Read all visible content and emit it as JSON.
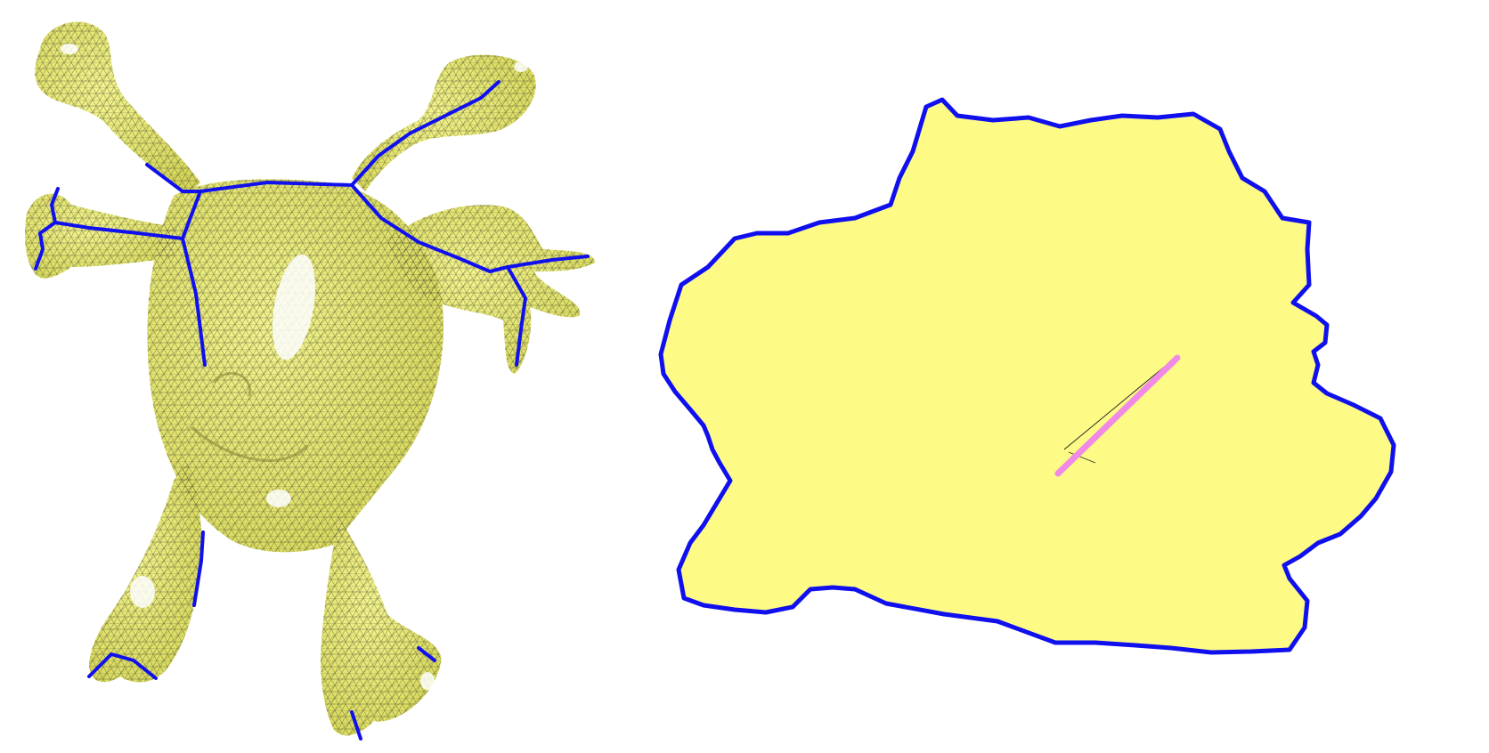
{
  "figure": {
    "panels": [
      {
        "id": "mesh3d",
        "description_visible": false
      },
      {
        "id": "param2d",
        "description_visible": false
      }
    ],
    "colors": {
      "background": "#ffffff",
      "mesh_fill": "#eef07a",
      "mesh_fill_light": "#f6f79c",
      "param_fill": "#fdfb86",
      "wire": "#3a3a28",
      "seam": "#1010ee",
      "highlight_cut": "#f08ae6",
      "specular": "#ffffff"
    }
  }
}
